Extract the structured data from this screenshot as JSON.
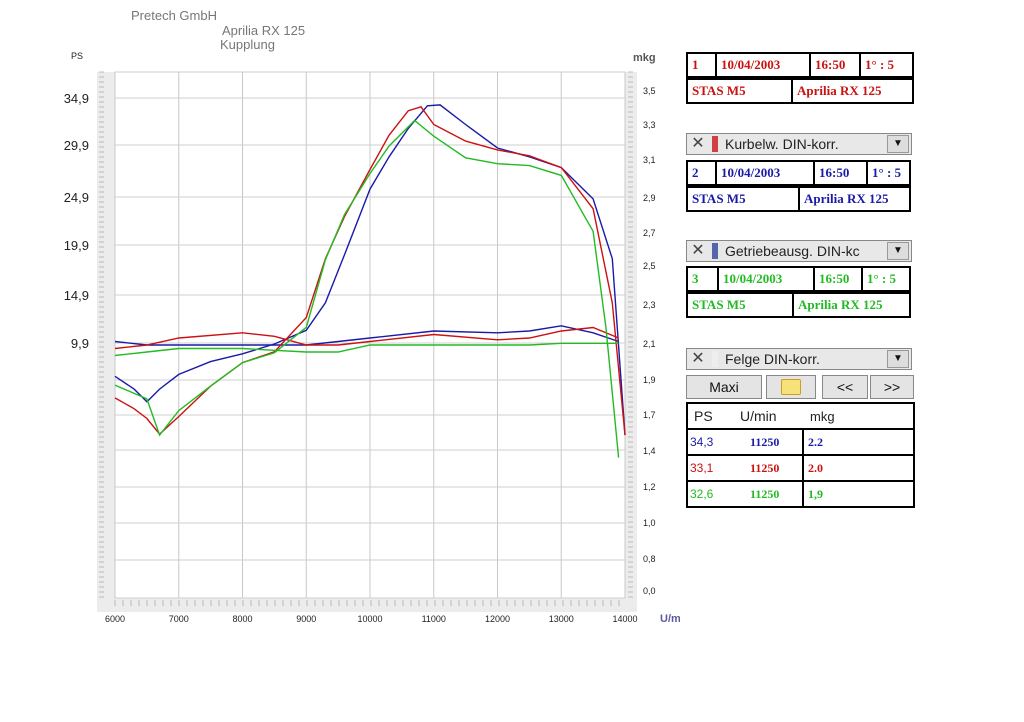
{
  "header": {
    "company": "Pretech GmbH",
    "vehicle": "Aprilia RX 125",
    "subtitle": "Kupplung"
  },
  "chart_data": {
    "type": "line",
    "x_unit": "U/min",
    "left_axis_label": "PS",
    "right_axis_label": "mkg",
    "xlim": [
      6000,
      14000
    ],
    "x_ticks": [
      "6000",
      "7000",
      "8000",
      "9000",
      "10000",
      "11000",
      "12000",
      "13000",
      "14000"
    ],
    "left_ticks": [
      "34,9",
      "29,9",
      "24,9",
      "19,9",
      "14,9",
      "9,9"
    ],
    "right_ticks": [
      "3,5",
      "3,3",
      "3,1",
      "2,9",
      "2,7",
      "2,5",
      "2,3",
      "2,1",
      "1,9",
      "1,7",
      "1,4",
      "1,2",
      "1,0",
      "0,8",
      "0,0"
    ],
    "grid": true,
    "series": [
      {
        "color": "#1a1aa8",
        "power": [
          [
            6000,
            6.5
          ],
          [
            6300,
            5.2
          ],
          [
            6500,
            3.9
          ],
          [
            6700,
            5.2
          ],
          [
            7000,
            6.7
          ],
          [
            7500,
            8.0
          ],
          [
            8000,
            8.8
          ],
          [
            8500,
            9.8
          ],
          [
            9000,
            11.2
          ],
          [
            9300,
            14.0
          ],
          [
            9600,
            18.9
          ],
          [
            10000,
            25.6
          ],
          [
            10300,
            28.9
          ],
          [
            10600,
            31.8
          ],
          [
            10900,
            34.1
          ],
          [
            11100,
            34.2
          ],
          [
            11500,
            32.2
          ],
          [
            12000,
            29.8
          ],
          [
            12500,
            28.9
          ],
          [
            13000,
            27.8
          ],
          [
            13500,
            24.6
          ],
          [
            13800,
            18.5
          ],
          [
            14000,
            0.5
          ]
        ],
        "torque": [
          [
            6000,
            2.12
          ],
          [
            6500,
            2.1
          ],
          [
            7000,
            2.1
          ],
          [
            8000,
            2.1
          ],
          [
            9000,
            2.1
          ],
          [
            10000,
            2.14
          ],
          [
            11000,
            2.18
          ],
          [
            12000,
            2.17
          ],
          [
            12500,
            2.18
          ],
          [
            13000,
            2.21
          ],
          [
            13500,
            2.17
          ],
          [
            13900,
            2.12
          ]
        ]
      },
      {
        "color": "#cc1111",
        "power": [
          [
            6000,
            4.3
          ],
          [
            6300,
            3.2
          ],
          [
            6500,
            2.2
          ],
          [
            6700,
            0.6
          ],
          [
            7000,
            2.4
          ],
          [
            7500,
            5.5
          ],
          [
            8000,
            7.9
          ],
          [
            8500,
            9.0
          ],
          [
            9000,
            12.5
          ],
          [
            9300,
            18.5
          ],
          [
            9600,
            22.8
          ],
          [
            10000,
            27.6
          ],
          [
            10300,
            31.1
          ],
          [
            10600,
            33.6
          ],
          [
            10800,
            34.0
          ],
          [
            11000,
            32.2
          ],
          [
            11500,
            30.5
          ],
          [
            12000,
            29.6
          ],
          [
            12500,
            29.0
          ],
          [
            13000,
            27.8
          ],
          [
            13500,
            23.6
          ],
          [
            13800,
            14.0
          ],
          [
            14000,
            0.5
          ]
        ],
        "torque": [
          [
            6000,
            2.08
          ],
          [
            6500,
            2.1
          ],
          [
            7000,
            2.14
          ],
          [
            8000,
            2.17
          ],
          [
            8500,
            2.15
          ],
          [
            9000,
            2.1
          ],
          [
            9500,
            2.1
          ],
          [
            10000,
            2.12
          ],
          [
            11000,
            2.16
          ],
          [
            12000,
            2.13
          ],
          [
            12500,
            2.14
          ],
          [
            13000,
            2.18
          ],
          [
            13500,
            2.2
          ],
          [
            13900,
            2.14
          ]
        ]
      },
      {
        "color": "#22bb22",
        "power": [
          [
            6000,
            5.6
          ],
          [
            6500,
            4.2
          ],
          [
            6700,
            0.5
          ],
          [
            7000,
            3.0
          ],
          [
            7500,
            5.5
          ],
          [
            8000,
            7.9
          ],
          [
            8500,
            8.9
          ],
          [
            9000,
            11.5
          ],
          [
            9300,
            18.4
          ],
          [
            9600,
            23.0
          ],
          [
            10000,
            27.2
          ],
          [
            10300,
            30.0
          ],
          [
            10700,
            32.6
          ],
          [
            11000,
            31.0
          ],
          [
            11500,
            28.8
          ],
          [
            12000,
            28.2
          ],
          [
            12500,
            28.0
          ],
          [
            13000,
            27.0
          ],
          [
            13500,
            21.3
          ],
          [
            13700,
            11.5
          ],
          [
            13900,
            -1.8
          ]
        ],
        "torque": [
          [
            6000,
            2.04
          ],
          [
            6500,
            2.06
          ],
          [
            7000,
            2.08
          ],
          [
            8000,
            2.08
          ],
          [
            8500,
            2.07
          ],
          [
            9000,
            2.06
          ],
          [
            9500,
            2.06
          ],
          [
            10000,
            2.1
          ],
          [
            11000,
            2.1
          ],
          [
            12000,
            2.1
          ],
          [
            12500,
            2.1
          ],
          [
            13000,
            2.11
          ],
          [
            13900,
            2.11
          ]
        ]
      }
    ]
  },
  "legend": {
    "runs": [
      {
        "num": "1",
        "date": "10/04/2003",
        "time": "16:50",
        "ratio": "1° : 5",
        "test": "STAS M5",
        "vehicle": "Aprilia RX 125",
        "color": "#cc1111"
      },
      {
        "num": "2",
        "date": "10/04/2003",
        "time": "16:50",
        "ratio": "1° : 5",
        "test": "STAS M5",
        "vehicle": "Aprilia RX 125",
        "color": "#1a1aa8"
      },
      {
        "num": "3",
        "date": "10/04/2003",
        "time": "16:50",
        "ratio": "1° : 5",
        "test": "STAS M5",
        "vehicle": "Aprilia RX 125",
        "color": "#22bb22"
      }
    ],
    "dropdowns": [
      {
        "label": "Kurbelw. DIN-korr.",
        "swatch": "#d04040"
      },
      {
        "label": "Getriebeausg. DIN-kc",
        "swatch": "#5566aa"
      },
      {
        "label": "Felge DIN-korr.",
        "swatch": "#eeeeee"
      }
    ],
    "close_icon": "close-icon",
    "buttons": {
      "maxi": "Maxi",
      "prev": "<<",
      "next": ">>",
      "zoom_icon": "magnifier-icon"
    }
  },
  "results": {
    "headers": [
      "PS",
      "U/min",
      "mkg"
    ],
    "rows": [
      {
        "ps": "34,3",
        "rpm": "11250",
        "mkg": "2.2",
        "color": "#1a1aa8"
      },
      {
        "ps": "33,1",
        "rpm": "11250",
        "mkg": "2.0",
        "color": "#cc1111"
      },
      {
        "ps": "32,6",
        "rpm": "11250",
        "mkg": "1,9",
        "color": "#22bb22"
      }
    ]
  }
}
